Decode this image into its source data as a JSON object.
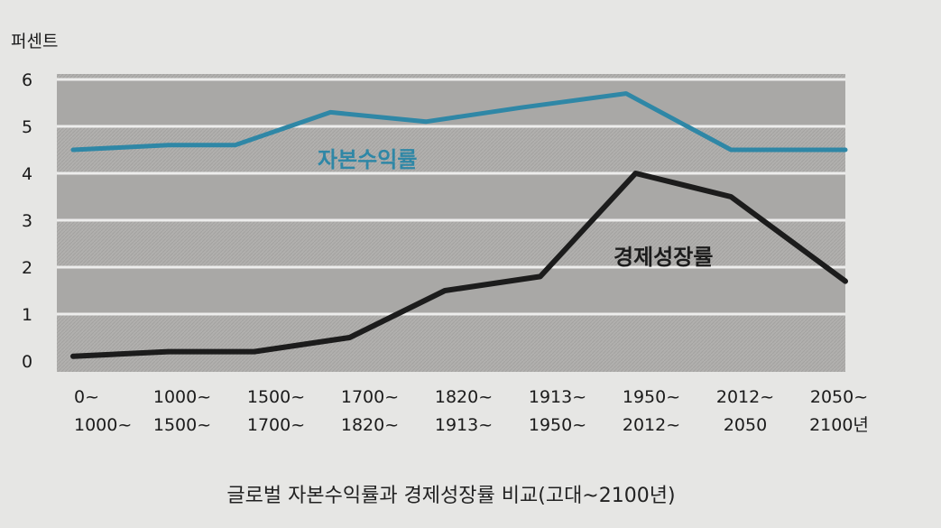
{
  "chart_data": {
    "type": "line",
    "title": "",
    "ylabel": "퍼센트",
    "xlabel": "",
    "caption": "글로벌 자본수익률과 경제성장률 비교(고대~2100년)",
    "ylim": [
      0,
      6
    ],
    "yticks": [
      0,
      1,
      2,
      3,
      4,
      5,
      6
    ],
    "grid": true,
    "categories": [
      [
        "0~",
        "1000~"
      ],
      [
        "1000~",
        "1500~"
      ],
      [
        "1500~",
        "1700~"
      ],
      [
        "1700~",
        "1820~"
      ],
      [
        "1820~",
        "1913~"
      ],
      [
        "1913~",
        "1950~"
      ],
      [
        "1950~",
        "2012~"
      ],
      [
        "2012~",
        "2050"
      ],
      [
        "2050~",
        "2100년"
      ]
    ],
    "series": [
      {
        "name": "자본수익률",
        "color": "#2f87a6",
        "x": [
          0,
          1,
          1.7,
          2.7,
          3.7,
          4.7,
          5.8,
          6.9,
          8.1
        ],
        "values": [
          4.5,
          4.6,
          4.6,
          5.3,
          5.1,
          5.4,
          5.7,
          4.5,
          4.5
        ]
      },
      {
        "name": "경제성장률",
        "color": "#1c1c1c",
        "x": [
          0,
          1,
          1.9,
          2.9,
          3.9,
          4.9,
          5.9,
          6.9,
          8.1
        ],
        "values": [
          0.1,
          0.2,
          0.2,
          0.5,
          1.5,
          1.8,
          4.0,
          3.5,
          1.7
        ]
      }
    ]
  }
}
